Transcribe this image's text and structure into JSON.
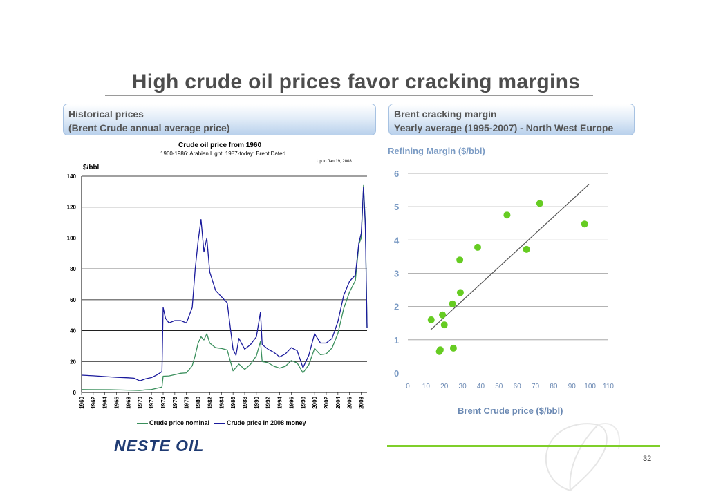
{
  "slide": {
    "title": "High crude oil prices favor cracking margins",
    "page_number": "32",
    "logo_text": "NESTE OIL"
  },
  "left_panel": {
    "header_line1": "Historical prices",
    "header_line2": "(Brent Crude annual average price)"
  },
  "right_panel": {
    "header_line1": "Brent cracking margin",
    "header_line2": "Yearly average (1995-2007) - North West Europe"
  },
  "colors": {
    "nominal": "#3a8f5c",
    "real": "#1a1a9c",
    "scatter_point": "#66cc22",
    "trend_line": "#555555",
    "axis_text_right": "#7b9bc4",
    "logo": "#1f3b73"
  },
  "chart_data": [
    {
      "type": "line",
      "title": "Crude oil price from 1960",
      "subtitle": "1960-1986: Arabian Light, 1987-today: Brent Dated",
      "annotation": "Up to Jan 19, 2008",
      "ylabel": "$/bbl",
      "ylim": [
        0,
        140
      ],
      "yticks": [
        0,
        20,
        40,
        60,
        80,
        100,
        120,
        140
      ],
      "xlim": [
        1960,
        2009
      ],
      "xticks": [
        1960,
        1962,
        1964,
        1966,
        1968,
        1970,
        1972,
        1974,
        1976,
        1978,
        1980,
        1982,
        1984,
        1986,
        1988,
        1990,
        1992,
        1994,
        1996,
        1998,
        2000,
        2002,
        2004,
        2006,
        2008
      ],
      "grid": true,
      "legend_position": "bottom",
      "series": [
        {
          "name": "Crude price nominal",
          "color": "#3a8f5c",
          "points": [
            [
              1960,
              1.9
            ],
            [
              1965,
              1.8
            ],
            [
              1970,
              1.3
            ],
            [
              1971,
              1.7
            ],
            [
              1972,
              1.9
            ],
            [
              1973,
              2.8
            ],
            [
              1973.8,
              3.5
            ],
            [
              1974,
              10.5
            ],
            [
              1975,
              10.7
            ],
            [
              1976,
              11.5
            ],
            [
              1977,
              12.4
            ],
            [
              1978,
              12.7
            ],
            [
              1979,
              17.3
            ],
            [
              1979.5,
              24
            ],
            [
              1980,
              32
            ],
            [
              1980.5,
              36
            ],
            [
              1981,
              34
            ],
            [
              1981.5,
              38
            ],
            [
              1982,
              32
            ],
            [
              1983,
              29
            ],
            [
              1984,
              28.5
            ],
            [
              1985,
              27.5
            ],
            [
              1986,
              14
            ],
            [
              1987,
              18.4
            ],
            [
              1988,
              14.9
            ],
            [
              1989,
              18.2
            ],
            [
              1990,
              23.7
            ],
            [
              1990.7,
              33
            ],
            [
              1991,
              20
            ],
            [
              1992,
              19.3
            ],
            [
              1993,
              17
            ],
            [
              1994,
              15.8
            ],
            [
              1995,
              17
            ],
            [
              1996,
              20.6
            ],
            [
              1997,
              19.1
            ],
            [
              1998,
              12.7
            ],
            [
              1999,
              17.9
            ],
            [
              2000,
              28.5
            ],
            [
              2001,
              24.4
            ],
            [
              2002,
              25
            ],
            [
              2003,
              28.8
            ],
            [
              2004,
              38.3
            ],
            [
              2005,
              54.4
            ],
            [
              2006,
              65.1
            ],
            [
              2007,
              72.4
            ],
            [
              2007.6,
              96
            ],
            [
              2008,
              100
            ],
            [
              2008.4,
              134
            ],
            [
              2008.7,
              110
            ],
            [
              2009,
              42
            ]
          ]
        },
        {
          "name": "Crude price in 2008 money",
          "color": "#1a1a9c",
          "points": [
            [
              1960,
              11.2
            ],
            [
              1962,
              10.8
            ],
            [
              1964,
              10.3
            ],
            [
              1966,
              9.8
            ],
            [
              1968,
              9.5
            ],
            [
              1969,
              9.2
            ],
            [
              1970,
              7.5
            ],
            [
              1971,
              8.8
            ],
            [
              1972,
              9.6
            ],
            [
              1973,
              11.5
            ],
            [
              1973.8,
              13.5
            ],
            [
              1974,
              55
            ],
            [
              1974.4,
              48
            ],
            [
              1975,
              45
            ],
            [
              1976,
              46.5
            ],
            [
              1977,
              46.5
            ],
            [
              1978,
              45
            ],
            [
              1979,
              55
            ],
            [
              1979.5,
              80
            ],
            [
              1980,
              98
            ],
            [
              1980.5,
              112
            ],
            [
              1981,
              91
            ],
            [
              1981.5,
              100
            ],
            [
              1982,
              78
            ],
            [
              1983,
              66
            ],
            [
              1984,
              62
            ],
            [
              1985,
              58
            ],
            [
              1986,
              28
            ],
            [
              1986.5,
              24
            ],
            [
              1987,
              35
            ],
            [
              1988,
              28
            ],
            [
              1989,
              31
            ],
            [
              1990,
              36
            ],
            [
              1990.7,
              52
            ],
            [
              1991,
              31
            ],
            [
              1992,
              28
            ],
            [
              1993,
              26
            ],
            [
              1994,
              23
            ],
            [
              1995,
              25
            ],
            [
              1996,
              29
            ],
            [
              1997,
              27
            ],
            [
              1998,
              16
            ],
            [
              1999,
              24
            ],
            [
              2000,
              38
            ],
            [
              2001,
              32
            ],
            [
              2002,
              32
            ],
            [
              2003,
              35
            ],
            [
              2004,
              46
            ],
            [
              2005,
              63
            ],
            [
              2006,
              72
            ],
            [
              2007,
              76
            ],
            [
              2007.6,
              97
            ],
            [
              2008,
              103
            ],
            [
              2008.4,
              133
            ],
            [
              2008.7,
              108
            ],
            [
              2009,
              42
            ]
          ]
        }
      ]
    },
    {
      "type": "scatter",
      "title": "Refining Margin ($/bbl)",
      "xlabel": "Brent Crude price ($/bbl)",
      "ylabel": "",
      "xlim": [
        0,
        110
      ],
      "ylim": [
        0,
        6
      ],
      "xticks": [
        0,
        10,
        20,
        30,
        40,
        50,
        60,
        70,
        80,
        90,
        100,
        110
      ],
      "yticks": [
        0,
        1,
        2,
        3,
        4,
        5,
        6
      ],
      "grid": true,
      "series": [
        {
          "name": "",
          "color": "#66cc22",
          "points": [
            [
              12.8,
              1.6
            ],
            [
              17.3,
              0.65
            ],
            [
              17.8,
              0.7
            ],
            [
              19,
              1.75
            ],
            [
              20,
              1.45
            ],
            [
              24.5,
              2.08
            ],
            [
              25,
              0.75
            ],
            [
              28.8,
              2.42
            ],
            [
              28.5,
              3.4
            ],
            [
              38.3,
              3.78
            ],
            [
              54.4,
              4.75
            ],
            [
              65.1,
              3.72
            ],
            [
              72.4,
              5.1
            ],
            [
              97,
              4.48
            ]
          ]
        }
      ],
      "trendline": [
        [
          12.5,
          1.3
        ],
        [
          99.5,
          5.68
        ]
      ]
    }
  ]
}
